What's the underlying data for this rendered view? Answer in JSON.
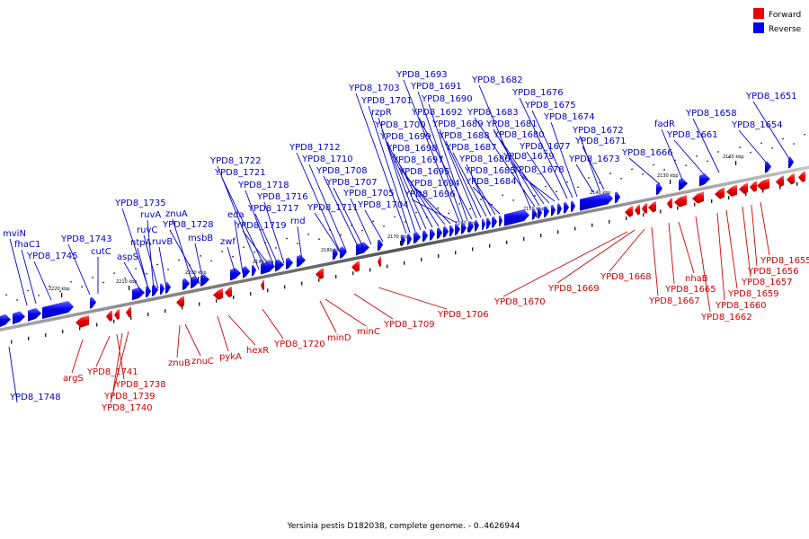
{
  "legend": {
    "forward_label": "Forward",
    "reverse_label": "Reverse",
    "forward_color": "#ee0000",
    "reverse_color": "#0000ee"
  },
  "caption": "Yersinia pestis D182038, complete genome. - 0..4626944",
  "kbp_ticks": [
    "2220 kbp",
    "2210 kbp",
    "2200 kbp",
    "2190 kbp",
    "2180 kbp",
    "2170 kbp",
    "2160 kbp",
    "2150 kbp",
    "2140 kbp",
    "2130 kbp",
    "2120 kbp"
  ],
  "reverse_labels": [
    "mviN",
    "fhaC1",
    "YPD8_1745",
    "YPD8_1743",
    "cutC",
    "aspS",
    "YPD8_1735",
    "ruvA",
    "znuA",
    "ruvC",
    "ntpA",
    "ruvB",
    "YPD8_1728",
    "msbB",
    "zwf",
    "eda",
    "YPD8_1722",
    "YPD8_1721",
    "YPD8_1718",
    "YPD8_1719",
    "YPD8_1717",
    "YPD8_1716",
    "rnd",
    "YPD8_1712",
    "YPD8_1710",
    "YPD8_1708",
    "YPD8_1707",
    "YPD8_1711",
    "YPD8_1705",
    "YPD8_1704",
    "YPD8_1703",
    "YPD8_1701",
    "rzpR",
    "YPD8_1700",
    "YPD8_1699",
    "YPD8_1698",
    "YPD8_1697",
    "YPD8_1695",
    "YPD8_1694",
    "YPD8_1696",
    "YPD8_1693",
    "YPD8_1691",
    "YPD8_1690",
    "YPD8_1692",
    "YPD8_1689",
    "YPD8_1688",
    "YPD8_1687",
    "YPD8_1686",
    "YPD8_1685",
    "YPD8_1684",
    "YPD8_1682",
    "YPD8_1683",
    "YPD8_1681",
    "YPD8_1680",
    "YPD8_1679",
    "YPD8_1678",
    "YPD8_1677",
    "YPD8_1676",
    "YPD8_1675",
    "YPD8_1674",
    "YPD8_1672",
    "YPD8_1671",
    "YPD8_1673",
    "YPD8_1666",
    "fadR",
    "YPD8_1661",
    "YPD8_1658",
    "YPD8_1654",
    "YPD8_1651",
    "YPD8_1748"
  ],
  "forward_labels": [
    "argS",
    "YPD8_1741",
    "YPD8_1738",
    "YPD8_1739",
    "YPD8_1740",
    "znuB",
    "znuC",
    "pykA",
    "hexR",
    "YPD8_1720",
    "minD",
    "minC",
    "YPD8_1709",
    "YPD8_1706",
    "YPD8_1670",
    "YPD8_1669",
    "YPD8_1668",
    "YPD8_1667",
    "YPD8_1665",
    "nhaB",
    "YPD8_1662",
    "YPD8_1660",
    "YPD8_1659",
    "YPD8_1657",
    "YPD8_1656",
    "YPD8_1655"
  ]
}
